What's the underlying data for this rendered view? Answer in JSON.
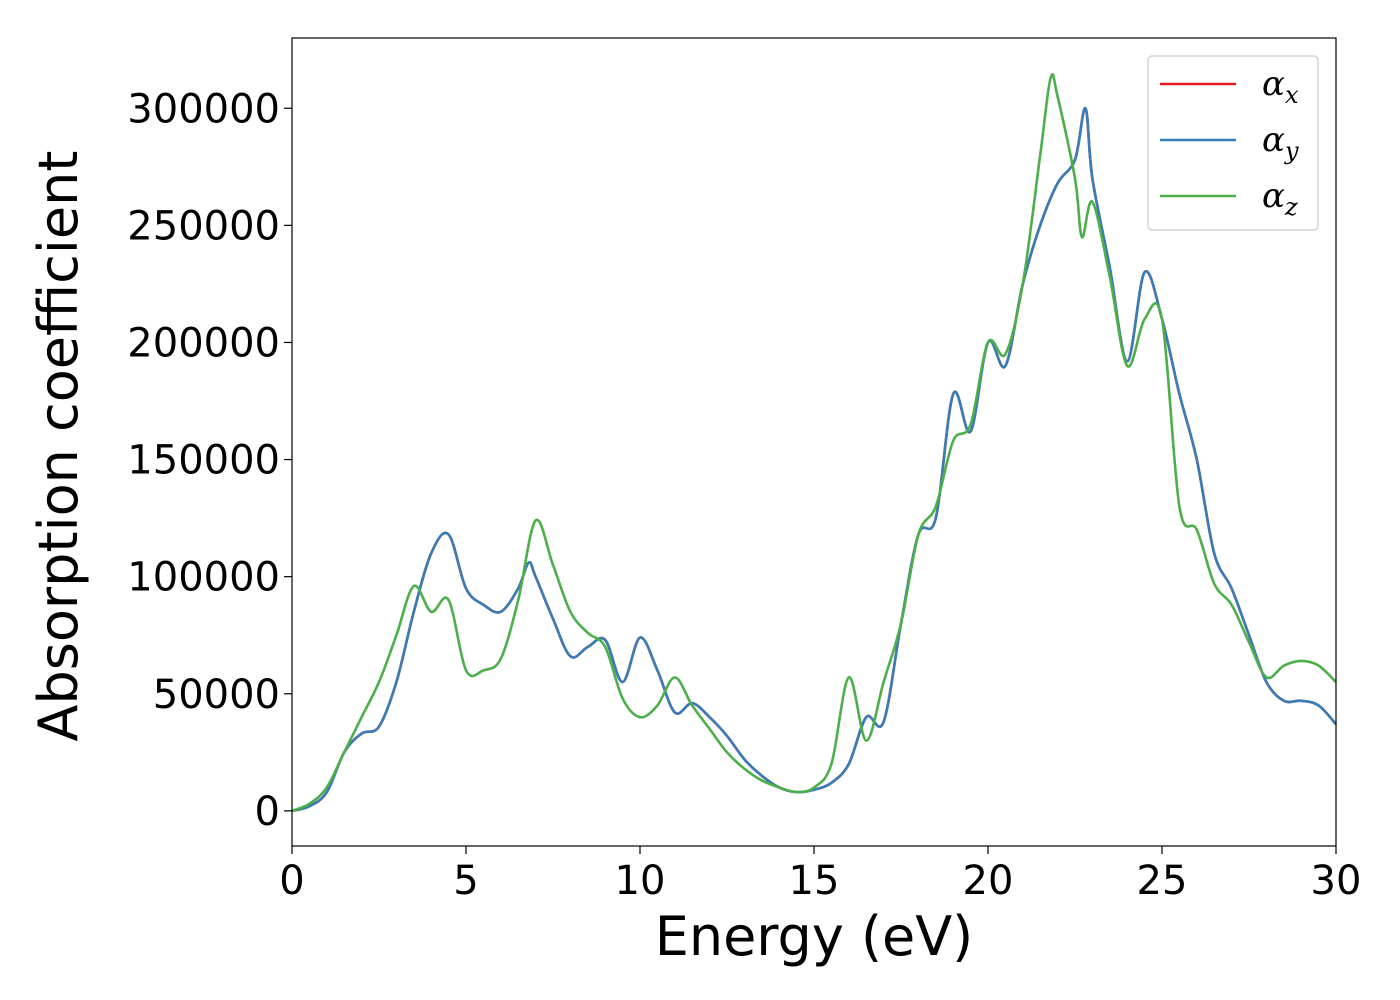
{
  "chart_data": {
    "type": "line",
    "xlabel": "Energy (eV)",
    "ylabel": "Absorption coefficient",
    "xlim": [
      0,
      30
    ],
    "ylim": [
      -15000,
      330000
    ],
    "xticks": [
      "0",
      "5",
      "10",
      "15",
      "20",
      "25",
      "30"
    ],
    "yticks": [
      "0",
      "50000",
      "100000",
      "150000",
      "200000",
      "250000",
      "300000"
    ],
    "grid": false,
    "legend_position": "top-right",
    "series": [
      {
        "name": "α",
        "subscript": "x",
        "color": "#e41a1c",
        "x": [
          0,
          0.5,
          1.0,
          1.5,
          2.0,
          2.5,
          3.0,
          3.5,
          4.0,
          4.5,
          5.0,
          5.5,
          6.0,
          6.5,
          6.8,
          7.0,
          7.5,
          8.0,
          8.5,
          9.0,
          9.5,
          10.0,
          10.5,
          11.0,
          11.5,
          12.0,
          12.5,
          13.0,
          13.5,
          14.0,
          14.5,
          15.0,
          15.5,
          16.0,
          16.5,
          17.0,
          17.5,
          18.0,
          18.5,
          19.0,
          19.5,
          20.0,
          20.5,
          21.0,
          21.5,
          22.0,
          22.5,
          22.8,
          23.0,
          23.5,
          24.0,
          24.5,
          25.0,
          25.5,
          26.0,
          26.5,
          27.0,
          27.5,
          28.0,
          28.5,
          29.0,
          29.5,
          30.0
        ],
        "values": [
          0,
          2000,
          8000,
          25000,
          33000,
          36000,
          55000,
          85000,
          110000,
          118000,
          95000,
          88000,
          85000,
          95000,
          106000,
          100000,
          82000,
          66000,
          70000,
          73000,
          55000,
          74000,
          60000,
          42000,
          46000,
          40000,
          32000,
          22000,
          15000,
          10000,
          8000,
          9000,
          12000,
          20000,
          40000,
          38000,
          80000,
          118000,
          125000,
          178000,
          162000,
          200000,
          190000,
          225000,
          250000,
          268000,
          278000,
          300000,
          270000,
          232000,
          192000,
          230000,
          210000,
          178000,
          150000,
          110000,
          95000,
          75000,
          55000,
          47000,
          47000,
          45000,
          37000
        ]
      },
      {
        "name": "α",
        "subscript": "y",
        "color": "#377eb8",
        "x": [
          0,
          0.5,
          1.0,
          1.5,
          2.0,
          2.5,
          3.0,
          3.5,
          4.0,
          4.5,
          5.0,
          5.5,
          6.0,
          6.5,
          6.8,
          7.0,
          7.5,
          8.0,
          8.5,
          9.0,
          9.5,
          10.0,
          10.5,
          11.0,
          11.5,
          12.0,
          12.5,
          13.0,
          13.5,
          14.0,
          14.5,
          15.0,
          15.5,
          16.0,
          16.5,
          17.0,
          17.5,
          18.0,
          18.5,
          19.0,
          19.5,
          20.0,
          20.5,
          21.0,
          21.5,
          22.0,
          22.5,
          22.8,
          23.0,
          23.5,
          24.0,
          24.5,
          25.0,
          25.5,
          26.0,
          26.5,
          27.0,
          27.5,
          28.0,
          28.5,
          29.0,
          29.5,
          30.0
        ],
        "values": [
          0,
          2000,
          8000,
          25000,
          33000,
          36000,
          55000,
          85000,
          110000,
          118000,
          95000,
          88000,
          85000,
          95000,
          106000,
          100000,
          82000,
          66000,
          70000,
          73000,
          55000,
          74000,
          60000,
          42000,
          46000,
          40000,
          32000,
          22000,
          15000,
          10000,
          8000,
          9000,
          12000,
          20000,
          40000,
          38000,
          80000,
          118000,
          125000,
          178000,
          162000,
          200000,
          190000,
          225000,
          250000,
          268000,
          278000,
          300000,
          270000,
          232000,
          192000,
          230000,
          210000,
          178000,
          150000,
          110000,
          95000,
          75000,
          55000,
          47000,
          47000,
          45000,
          37000
        ]
      },
      {
        "name": "α",
        "subscript": "z",
        "color": "#4daf4a",
        "x": [
          0,
          0.5,
          1.0,
          1.5,
          2.0,
          2.5,
          3.0,
          3.5,
          4.0,
          4.5,
          5.0,
          5.5,
          6.0,
          6.5,
          7.0,
          7.5,
          8.0,
          8.5,
          9.0,
          9.5,
          10.0,
          10.5,
          11.0,
          11.5,
          12.0,
          12.5,
          13.0,
          13.5,
          14.0,
          14.5,
          15.0,
          15.5,
          16.0,
          16.5,
          17.0,
          17.5,
          18.0,
          18.5,
          19.0,
          19.5,
          20.0,
          20.5,
          21.0,
          21.5,
          21.8,
          22.0,
          22.5,
          22.7,
          23.0,
          23.5,
          24.0,
          24.5,
          25.0,
          25.5,
          26.0,
          26.5,
          27.0,
          27.5,
          28.0,
          28.5,
          29.0,
          29.5,
          30.0
        ],
        "values": [
          0,
          3000,
          10000,
          25000,
          40000,
          55000,
          75000,
          96000,
          85000,
          90000,
          60000,
          60000,
          65000,
          90000,
          124000,
          105000,
          85000,
          76000,
          70000,
          48000,
          40000,
          45000,
          57000,
          45000,
          35000,
          25000,
          18000,
          13000,
          10000,
          8000,
          10000,
          20000,
          57000,
          30000,
          55000,
          80000,
          118000,
          130000,
          158000,
          165000,
          200000,
          195000,
          225000,
          280000,
          313000,
          305000,
          270000,
          245000,
          260000,
          228000,
          190000,
          210000,
          210000,
          130000,
          120000,
          97000,
          88000,
          72000,
          57000,
          62000,
          64000,
          62000,
          55000
        ]
      }
    ]
  }
}
